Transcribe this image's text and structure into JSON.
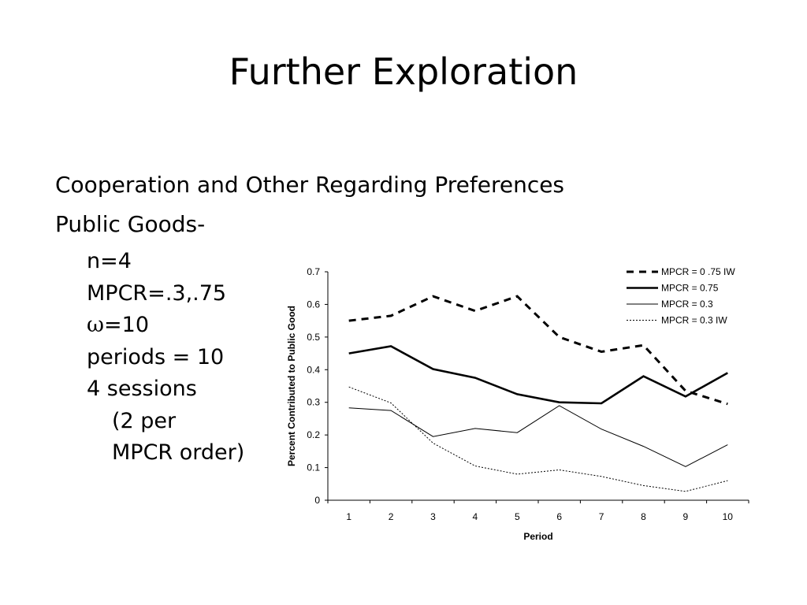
{
  "slide": {
    "title": "Further Exploration",
    "bullet1": "Cooperation and Other Regarding Preferences",
    "bullet2": "Public Goods-",
    "params": {
      "n": "n=4",
      "mpcr": "MPCR=.3,.75",
      "omega_symbol": "ω",
      "omega_value": "=10",
      "periods": "periods = 10",
      "sessions": "4 sessions",
      "per_a": "(2 per",
      "per_b": "MPCR order)"
    }
  },
  "chart_data": {
    "type": "line",
    "xlabel": "Period",
    "ylabel": "Percent Contributed to Public Good",
    "x": [
      1,
      2,
      3,
      4,
      5,
      6,
      7,
      8,
      9,
      10
    ],
    "ylim": [
      0,
      0.7
    ],
    "yticks": [
      "0",
      "0.1",
      "0.2",
      "0.3",
      "0.4",
      "0.5",
      "0.6",
      "0.7"
    ],
    "xticks": [
      "1",
      "2",
      "3",
      "4",
      "5",
      "6",
      "7",
      "8",
      "9",
      "10"
    ],
    "legend_position": "top-right",
    "series": [
      {
        "name": "MPCR = 0 .75 IW",
        "style": "thick-dashed",
        "values": [
          0.55,
          0.565,
          0.625,
          0.58,
          0.625,
          0.5,
          0.455,
          0.475,
          0.335,
          0.295
        ]
      },
      {
        "name": "MPCR = 0.75",
        "style": "thick-solid",
        "values": [
          0.45,
          0.472,
          0.402,
          0.375,
          0.325,
          0.3,
          0.297,
          0.38,
          0.318,
          0.39
        ]
      },
      {
        "name": "MPCR = 0.3",
        "style": "thin-solid",
        "values": [
          0.283,
          0.275,
          0.195,
          0.22,
          0.207,
          0.29,
          0.218,
          0.165,
          0.103,
          0.17
        ]
      },
      {
        "name": "MPCR = 0.3 IW",
        "style": "thin-dotted",
        "values": [
          0.347,
          0.298,
          0.175,
          0.105,
          0.08,
          0.093,
          0.073,
          0.045,
          0.027,
          0.06
        ]
      }
    ]
  }
}
